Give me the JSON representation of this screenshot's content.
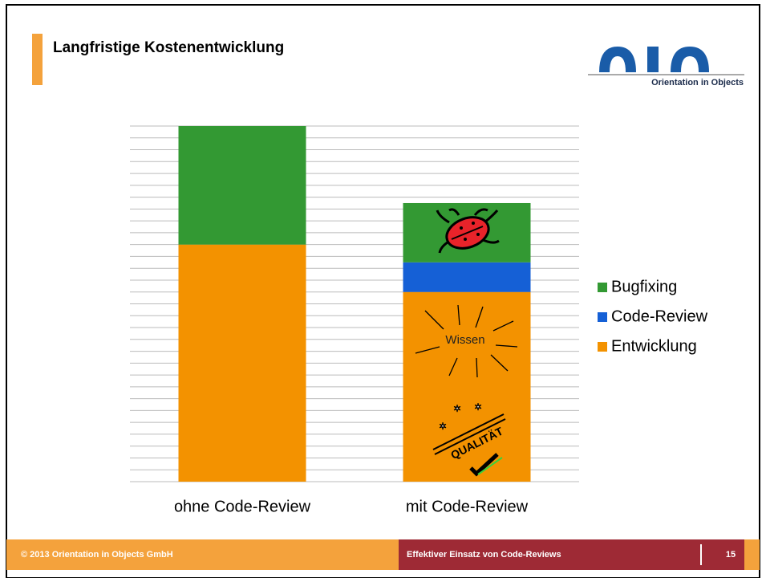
{
  "header": {
    "title": "Langfristige Kostenentwicklung",
    "logo_text": "Orientation in Objects"
  },
  "chart_data": {
    "type": "stacked_bar",
    "categories": [
      "ohne Code-Review",
      "mit Code-Review"
    ],
    "series": [
      {
        "name": "Entwicklung",
        "color": "#f39200",
        "values": [
          20,
          16
        ]
      },
      {
        "name": "Code-Review",
        "color": "#1560d6",
        "values": [
          null,
          2.5
        ]
      },
      {
        "name": "Bugfixing",
        "color": "#339933",
        "values": [
          10,
          5
        ]
      }
    ],
    "ylim": [
      0,
      30
    ],
    "yticks": [
      0,
      1,
      2,
      3,
      4,
      5,
      6,
      7,
      8,
      9,
      10,
      11,
      12,
      13,
      14,
      15,
      16,
      17,
      18,
      19,
      20,
      21,
      22,
      23,
      24,
      25,
      26,
      27,
      28,
      29,
      30
    ],
    "grid": true,
    "annotations": [
      "Wissen",
      "QUALITÄT"
    ]
  },
  "footer": {
    "copyright": "© 2013 Orientation in Objects GmbH",
    "topic": "Effektiver Einsatz von Code-Reviews",
    "page": "15"
  }
}
